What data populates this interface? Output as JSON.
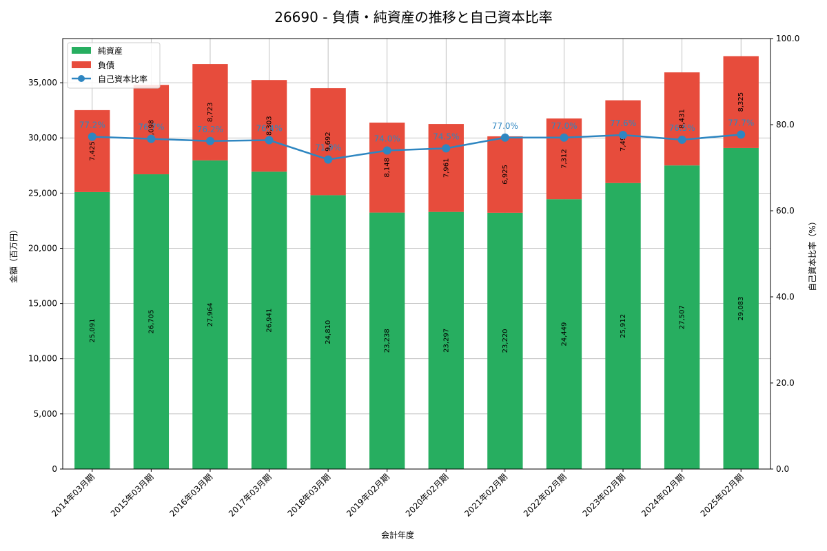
{
  "chart_data": {
    "type": "bar",
    "title": "26690 - 負債・純資産の推移と自己資本比率",
    "xlabel": "会計年度",
    "ylabel": "金額（百万円）",
    "y2label": "自己資本比率（%）",
    "categories": [
      "2014年03月期",
      "2015年03月期",
      "2016年03月期",
      "2017年03月期",
      "2018年03月期",
      "2019年02月期",
      "2020年02月期",
      "2021年02月期",
      "2022年02月期",
      "2023年02月期",
      "2024年02月期",
      "2025年02月期"
    ],
    "ylim": [
      0,
      39000
    ],
    "y2lim": [
      0,
      100
    ],
    "yticks": [
      0,
      5000,
      10000,
      15000,
      20000,
      25000,
      30000,
      35000
    ],
    "y2ticks": [
      0,
      20,
      40,
      60,
      80,
      100
    ],
    "grid": true,
    "legend_position": "top-left",
    "series": [
      {
        "name": "純資産",
        "kind": "bar",
        "color": "#27ae60",
        "values": [
          25091,
          26705,
          27964,
          26941,
          24810,
          23238,
          23297,
          23220,
          24449,
          25912,
          27507,
          29083
        ]
      },
      {
        "name": "負債",
        "kind": "bar",
        "color": "#e74c3c",
        "values": [
          7425,
          8098,
          8723,
          8303,
          9692,
          8148,
          7961,
          6925,
          7312,
          7497,
          8431,
          8325
        ]
      },
      {
        "name": "自己資本比率",
        "kind": "line",
        "axis": "right",
        "color": "#2e86c1",
        "values": [
          77.2,
          76.7,
          76.2,
          76.4,
          71.9,
          74.0,
          74.5,
          77.0,
          77.0,
          77.6,
          76.5,
          77.7
        ]
      }
    ]
  }
}
